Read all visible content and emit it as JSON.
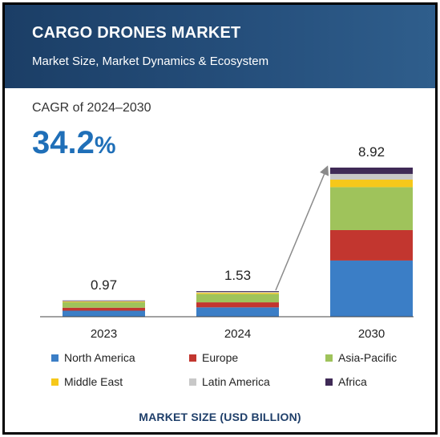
{
  "header": {
    "title": "CARGO DRONES MARKET",
    "subtitle": "Market Size, Market Dynamics & Ecosystem"
  },
  "cagr": {
    "label": "CAGR of 2024–2030",
    "value": "34.2",
    "unit": "%"
  },
  "footer": "MARKET SIZE (USD BILLION)",
  "chart_data": {
    "type": "bar",
    "stacked": true,
    "categories": [
      "2023",
      "2024",
      "2030"
    ],
    "totals": [
      0.97,
      1.53,
      8.92
    ],
    "total_labels": [
      "0.97",
      "1.53",
      "8.92"
    ],
    "series": [
      {
        "name": "North America",
        "color": "#3b7ec6",
        "values": [
          0.36,
          0.56,
          3.36
        ]
      },
      {
        "name": "Europe",
        "color": "#c2362f",
        "values": [
          0.18,
          0.3,
          1.82
        ]
      },
      {
        "name": "Asia-Pacific",
        "color": "#9fc35b",
        "values": [
          0.33,
          0.5,
          2.57
        ]
      },
      {
        "name": "Middle East",
        "color": "#f6c81a",
        "values": [
          0.04,
          0.07,
          0.45
        ]
      },
      {
        "name": "Latin America",
        "color": "#c8c8c8",
        "values": [
          0.03,
          0.05,
          0.34
        ]
      },
      {
        "name": "Africa",
        "color": "#3f2a56",
        "values": [
          0.03,
          0.05,
          0.38
        ]
      }
    ],
    "ylim": [
      0,
      8.92
    ],
    "grid": false,
    "legend_position": "bottom",
    "annotation": "growth-arrow-2024-to-2030"
  }
}
